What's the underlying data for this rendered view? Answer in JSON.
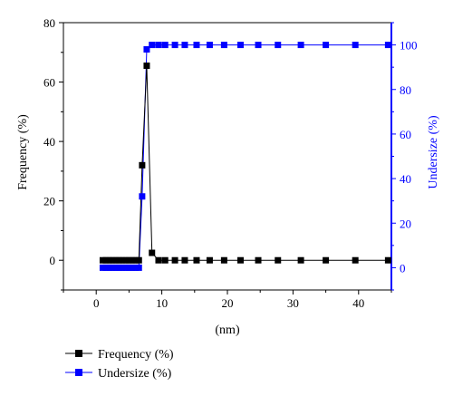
{
  "chart_data": {
    "type": "line",
    "xlabel": "(nm)",
    "ylabel_left": "Frequency (%)",
    "ylabel_right": "Undersize (%)",
    "xlim": [
      -5,
      45
    ],
    "ylim_left": [
      -10,
      80
    ],
    "ylim_right": [
      -10,
      110
    ],
    "x_ticks": [
      0,
      10,
      20,
      30,
      40
    ],
    "y_left_ticks": [
      0,
      20,
      40,
      60,
      80
    ],
    "y_right_ticks": [
      0,
      20,
      40,
      60,
      80,
      100
    ],
    "grid": false,
    "legend_position": "bottom-left",
    "series": [
      {
        "name": "Frequency (%)",
        "axis": "left",
        "color": "#000000",
        "marker": "square",
        "x": [
          1.0,
          1.5,
          2.0,
          2.5,
          3.0,
          3.5,
          4.0,
          4.5,
          5.0,
          5.5,
          6.0,
          6.5,
          7.0,
          7.7,
          8.5,
          9.5,
          10.5,
          12.0,
          13.5,
          15.3,
          17.3,
          19.5,
          22.0,
          24.7,
          27.7,
          31.2,
          35.0,
          39.5,
          44.5
        ],
        "values": [
          0,
          0,
          0,
          0,
          0,
          0,
          0,
          0,
          0,
          0,
          0,
          0,
          32,
          65.5,
          2.5,
          0,
          0,
          0,
          0,
          0,
          0,
          0,
          0,
          0,
          0,
          0,
          0,
          0,
          0
        ]
      },
      {
        "name": "Undersize (%)",
        "axis": "right",
        "color": "#0000ff",
        "marker": "square",
        "x": [
          1.0,
          1.5,
          2.0,
          2.5,
          3.0,
          3.5,
          4.0,
          4.5,
          5.0,
          5.5,
          6.0,
          6.5,
          7.0,
          7.7,
          8.5,
          9.5,
          10.5,
          12.0,
          13.5,
          15.3,
          17.3,
          19.5,
          22.0,
          24.7,
          27.7,
          31.2,
          35.0,
          39.5,
          44.5
        ],
        "values": [
          0,
          0,
          0,
          0,
          0,
          0,
          0,
          0,
          0,
          0,
          0,
          0,
          32,
          98,
          100,
          100,
          100,
          100,
          100,
          100,
          100,
          100,
          100,
          100,
          100,
          100,
          100,
          100,
          100
        ]
      }
    ]
  }
}
